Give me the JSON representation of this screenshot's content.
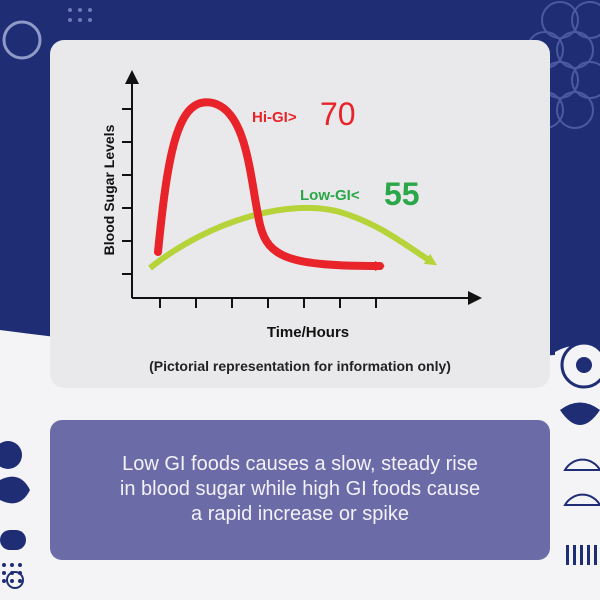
{
  "colors": {
    "navy": "#1f2d74",
    "card": "#e9e9eb",
    "hi_gi": "#e8232a",
    "low_gi": "#b6d43a",
    "label_green": "#2aa748",
    "message_bg": "#6b6ba8"
  },
  "chart_data": {
    "type": "line",
    "title": "",
    "xlabel": "Time/Hours",
    "ylabel": "Blood Sugar Levels",
    "x_ticks": 7,
    "y_ticks": 6,
    "annotations": [
      {
        "prefix": "Hi-GI>",
        "value": "70",
        "series": "hi_gi"
      },
      {
        "prefix": "Low-GI<",
        "value": "55",
        "series": "low_gi"
      }
    ],
    "series": [
      {
        "key": "hi_gi",
        "color": "#e8232a",
        "shape": "rapid spike then sharp fall"
      },
      {
        "key": "low_gi",
        "color": "#b6d43a",
        "shape": "slow steady rise and gradual fall"
      }
    ]
  },
  "footnote": "(Pictorial representation for information only)",
  "message": {
    "lines": [
      "Low GI foods causes a slow, steady rise",
      "in blood sugar while high GI foods cause",
      "a rapid increase or spike"
    ]
  }
}
